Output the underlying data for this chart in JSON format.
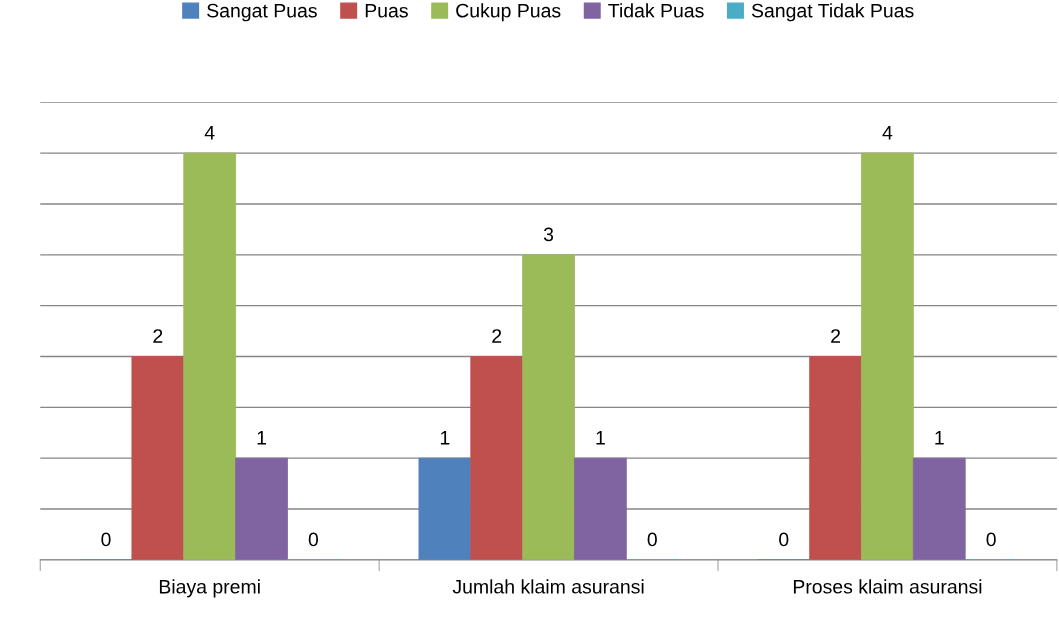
{
  "chart_data": {
    "type": "bar",
    "categories": [
      "Biaya premi",
      "Jumlah klaim asuransi",
      "Proses klaim asuransi"
    ],
    "series": [
      {
        "name": "Sangat Puas",
        "color": "#4f81bd",
        "values": [
          0,
          1,
          0
        ]
      },
      {
        "name": "Puas",
        "color": "#c0504d",
        "values": [
          2,
          2,
          2
        ]
      },
      {
        "name": "Cukup Puas",
        "color": "#9bbb59",
        "values": [
          4,
          3,
          4
        ]
      },
      {
        "name": "Tidak Puas",
        "color": "#8064a2",
        "values": [
          1,
          1,
          1
        ]
      },
      {
        "name": "Sangat Tidak Puas",
        "color": "#4bacc6",
        "values": [
          0,
          0,
          0
        ]
      }
    ],
    "ylim": [
      0,
      4.5
    ],
    "yticks": [
      {
        "value": 0,
        "label": null
      },
      {
        "value": 0.5,
        "label": null
      },
      {
        "value": 1,
        "label": null
      },
      {
        "value": 1.5,
        "label": null
      },
      {
        "value": 2,
        "label": null
      },
      {
        "value": 2.5,
        "label": null
      },
      {
        "value": 3,
        "label": null
      },
      {
        "value": 3.5,
        "label": null
      },
      {
        "value": 4,
        "label": null
      },
      {
        "value": 4.5,
        "label": null
      }
    ],
    "tick_labels": "x",
    "grid": "y",
    "legend": "top",
    "data_labels": true
  }
}
